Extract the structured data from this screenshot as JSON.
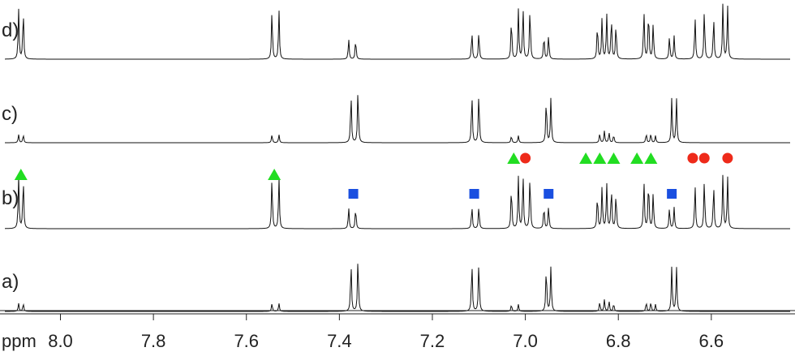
{
  "chart_data": {
    "type": "line",
    "xlabel": "ppm",
    "x_axis_reversed": true,
    "xlim": [
      8.13,
      6.42
    ],
    "ticks": [
      {
        "value": 8.0,
        "label": "8.0"
      },
      {
        "value": 7.8,
        "label": "7.8"
      },
      {
        "value": 7.6,
        "label": "7.6"
      },
      {
        "value": 7.4,
        "label": "7.4"
      },
      {
        "value": 7.2,
        "label": "7.2"
      },
      {
        "value": 7.0,
        "label": "7.0"
      },
      {
        "value": 6.8,
        "label": "6.8"
      },
      {
        "value": 6.6,
        "label": "6.6"
      }
    ],
    "series": [
      {
        "name": "d)",
        "peaks": [
          [
            8.09,
            0.86
          ],
          [
            8.08,
            0.86
          ],
          [
            7.545,
            0.86
          ],
          [
            7.53,
            0.86
          ],
          [
            7.38,
            0.35
          ],
          [
            7.365,
            0.35
          ],
          [
            7.115,
            0.48
          ],
          [
            7.1,
            0.48
          ],
          [
            7.03,
            0.72
          ],
          [
            7.015,
            0.85
          ],
          [
            7.005,
            0.92
          ],
          [
            6.99,
            0.92
          ],
          [
            6.96,
            0.42
          ],
          [
            6.95,
            0.42
          ],
          [
            6.845,
            0.62
          ],
          [
            6.835,
            0.72
          ],
          [
            6.825,
            0.77
          ],
          [
            6.815,
            0.74
          ],
          [
            6.805,
            0.62
          ],
          [
            6.745,
            0.86
          ],
          [
            6.735,
            0.86
          ],
          [
            6.725,
            0.62
          ],
          [
            6.69,
            0.4
          ],
          [
            6.68,
            0.4
          ],
          [
            6.635,
            0.74
          ],
          [
            6.615,
            0.86
          ],
          [
            6.595,
            0.74
          ],
          [
            6.575,
            0.99
          ],
          [
            6.565,
            0.92
          ]
        ]
      },
      {
        "name": "c)",
        "peaks": [
          [
            8.09,
            0.14
          ],
          [
            8.08,
            0.14
          ],
          [
            7.545,
            0.14
          ],
          [
            7.53,
            0.14
          ],
          [
            7.375,
            0.86
          ],
          [
            7.36,
            0.95
          ],
          [
            7.115,
            0.86
          ],
          [
            7.1,
            0.88
          ],
          [
            7.03,
            0.12
          ],
          [
            7.015,
            0.12
          ],
          [
            6.955,
            0.78
          ],
          [
            6.945,
            0.78
          ],
          [
            6.84,
            0.16
          ],
          [
            6.83,
            0.2
          ],
          [
            6.82,
            0.18
          ],
          [
            6.81,
            0.14
          ],
          [
            6.74,
            0.16
          ],
          [
            6.73,
            0.16
          ],
          [
            6.72,
            0.12
          ],
          [
            6.685,
            0.78
          ],
          [
            6.675,
            0.78
          ]
        ]
      },
      {
        "name": "b)",
        "peaks": [
          [
            8.09,
            0.86
          ],
          [
            8.08,
            0.86
          ],
          [
            7.545,
            0.86
          ],
          [
            7.53,
            0.86
          ],
          [
            7.38,
            0.35
          ],
          [
            7.365,
            0.35
          ],
          [
            7.115,
            0.38
          ],
          [
            7.1,
            0.38
          ],
          [
            7.03,
            0.72
          ],
          [
            7.015,
            0.85
          ],
          [
            7.005,
            0.92
          ],
          [
            6.99,
            0.92
          ],
          [
            6.96,
            0.38
          ],
          [
            6.95,
            0.38
          ],
          [
            6.845,
            0.58
          ],
          [
            6.835,
            0.7
          ],
          [
            6.825,
            0.74
          ],
          [
            6.815,
            0.7
          ],
          [
            6.805,
            0.6
          ],
          [
            6.745,
            0.82
          ],
          [
            6.735,
            0.82
          ],
          [
            6.725,
            0.6
          ],
          [
            6.69,
            0.35
          ],
          [
            6.68,
            0.35
          ],
          [
            6.635,
            0.74
          ],
          [
            6.615,
            0.82
          ],
          [
            6.595,
            0.74
          ],
          [
            6.575,
            0.92
          ],
          [
            6.565,
            0.86
          ]
        ]
      },
      {
        "name": "a)",
        "peaks": [
          [
            8.09,
            0.14
          ],
          [
            8.08,
            0.14
          ],
          [
            7.545,
            0.14
          ],
          [
            7.53,
            0.14
          ],
          [
            7.375,
            0.86
          ],
          [
            7.36,
            0.95
          ],
          [
            7.115,
            0.86
          ],
          [
            7.1,
            0.88
          ],
          [
            7.03,
            0.12
          ],
          [
            7.015,
            0.12
          ],
          [
            6.955,
            0.78
          ],
          [
            6.945,
            0.78
          ],
          [
            6.84,
            0.16
          ],
          [
            6.83,
            0.2
          ],
          [
            6.82,
            0.18
          ],
          [
            6.81,
            0.14
          ],
          [
            6.74,
            0.16
          ],
          [
            6.73,
            0.16
          ],
          [
            6.72,
            0.12
          ],
          [
            6.685,
            0.78
          ],
          [
            6.675,
            0.78
          ]
        ]
      }
    ],
    "markers": {
      "series": "b)",
      "green_triangles": [
        8.085,
        7.54,
        7.025,
        6.87,
        6.84,
        6.81,
        6.76,
        6.73
      ],
      "blue_squares": [
        7.37,
        7.11,
        6.95,
        6.685
      ],
      "red_circles": [
        7.0,
        6.64,
        6.615,
        6.565
      ],
      "colors": {
        "triangle": "#22dd22",
        "square": "#1a4fe0",
        "circle": "#ee2a1a"
      }
    }
  }
}
